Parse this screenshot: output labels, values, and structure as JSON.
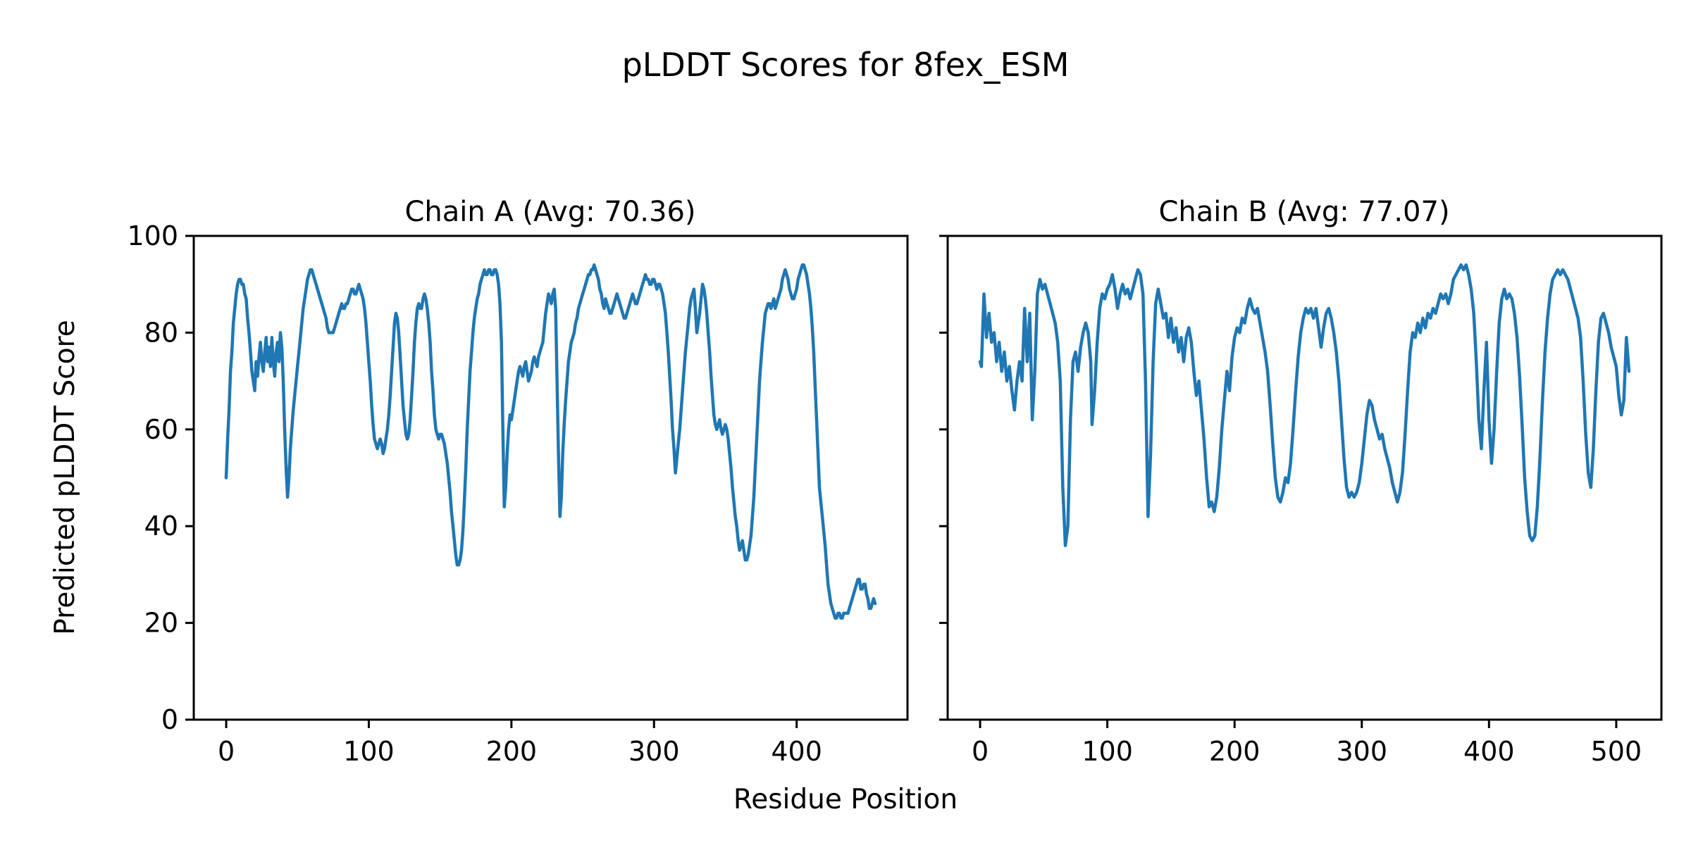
{
  "figure": {
    "title": "pLDDT Scores for 8fex_ESM",
    "xlabel": "Residue Position",
    "ylabel": "Predicted pLDDT Score",
    "background_color": "#ffffff",
    "text_color": "#000000",
    "spine_color": "#000000"
  },
  "chart_data": [
    {
      "type": "line",
      "title": "Chain A (Avg: 70.36)",
      "series_name": "Chain A pLDDT",
      "avg": 70.36,
      "line_color": "#1f77b4",
      "grid": false,
      "legend": false,
      "xlim": [
        -22.75,
        477.75
      ],
      "ylim": [
        0,
        100
      ],
      "xticks": [
        0,
        100,
        200,
        300,
        400
      ],
      "yticks": [
        0,
        20,
        40,
        60,
        80,
        100
      ],
      "show_ytick_labels": true,
      "x_start": 0,
      "x_step": 1,
      "y": [
        50,
        58,
        64,
        72,
        76,
        82,
        85,
        88,
        90,
        91,
        91,
        90,
        90,
        88,
        87,
        83,
        80,
        76,
        72,
        70,
        68,
        74,
        71,
        75,
        78,
        74,
        72,
        76,
        79,
        74,
        77,
        73,
        79,
        74,
        71,
        76,
        78,
        74,
        80,
        77,
        70,
        60,
        52,
        46,
        50,
        56,
        60,
        64,
        67,
        70,
        73,
        76,
        79,
        82,
        85,
        87,
        89,
        91,
        92,
        93,
        93,
        92,
        91,
        90,
        89,
        88,
        87,
        86,
        85,
        84,
        83,
        81,
        80,
        80,
        80,
        80,
        81,
        82,
        83,
        84,
        85,
        86,
        85,
        85,
        86,
        86,
        87,
        88,
        89,
        89,
        88,
        88,
        89,
        90,
        89,
        88,
        87,
        85,
        82,
        78,
        74,
        70,
        65,
        61,
        58,
        57,
        56,
        57,
        58,
        57,
        55,
        56,
        58,
        60,
        63,
        67,
        72,
        77,
        82,
        84,
        83,
        80,
        75,
        70,
        65,
        62,
        59,
        58,
        59,
        62,
        67,
        72,
        78,
        82,
        85,
        86,
        85,
        85,
        87,
        88,
        87,
        85,
        82,
        78,
        72,
        68,
        63,
        60,
        59,
        58,
        59,
        59,
        58,
        57,
        55,
        53,
        50,
        47,
        43,
        40,
        37,
        34,
        32,
        32,
        33,
        35,
        39,
        45,
        52,
        60,
        66,
        72,
        76,
        80,
        83,
        85,
        87,
        88,
        90,
        91,
        92,
        93,
        92,
        92,
        93,
        93,
        92,
        92,
        93,
        93,
        92,
        90,
        86,
        78,
        60,
        44,
        48,
        55,
        60,
        63,
        62,
        64,
        66,
        68,
        70,
        72,
        73,
        72,
        71,
        73,
        74,
        72,
        70,
        71,
        72,
        74,
        75,
        74,
        73,
        75,
        76,
        77,
        78,
        81,
        84,
        86,
        88,
        87,
        86,
        88,
        89,
        85,
        70,
        55,
        42,
        46,
        55,
        61,
        66,
        70,
        74,
        76,
        78,
        79,
        80,
        82,
        83,
        85,
        86,
        87,
        88,
        89,
        90,
        91,
        92,
        92,
        93,
        93,
        94,
        93,
        92,
        91,
        89,
        88,
        86,
        85,
        87,
        86,
        85,
        84,
        84,
        85,
        86,
        87,
        88,
        87,
        86,
        85,
        84,
        83,
        83,
        84,
        85,
        86,
        87,
        88,
        87,
        86,
        86,
        87,
        88,
        89,
        90,
        91,
        92,
        91,
        91,
        90,
        90,
        91,
        91,
        90,
        89,
        90,
        90,
        89,
        88,
        86,
        84,
        80,
        76,
        71,
        66,
        60,
        56,
        51,
        54,
        57,
        60,
        64,
        68,
        72,
        76,
        79,
        82,
        85,
        87,
        88,
        89,
        85,
        80,
        82,
        84,
        87,
        90,
        89,
        87,
        84,
        80,
        76,
        71,
        67,
        63,
        61,
        60,
        61,
        62,
        60,
        59,
        60,
        61,
        60,
        58,
        55,
        52,
        48,
        45,
        42,
        40,
        37,
        35,
        36,
        37,
        35,
        33,
        33,
        34,
        36,
        38,
        42,
        46,
        52,
        58,
        64,
        70,
        74,
        78,
        81,
        84,
        85,
        86,
        86,
        85,
        86,
        87,
        85,
        86,
        87,
        88,
        89,
        91,
        92,
        93,
        92,
        91,
        89,
        88,
        87,
        87,
        88,
        89,
        91,
        92,
        93,
        94,
        94,
        93,
        92,
        90,
        88,
        85,
        81,
        76,
        69,
        62,
        55,
        48,
        45,
        42,
        39,
        36,
        32,
        28,
        26,
        24,
        23,
        22,
        21,
        21,
        22,
        22,
        21,
        21,
        22,
        22,
        22,
        22,
        23,
        24,
        25,
        26,
        27,
        28,
        29,
        29,
        27,
        27,
        28,
        28,
        26,
        25,
        23,
        23,
        24,
        25,
        24
      ]
    },
    {
      "type": "line",
      "title": "Chain B (Avg: 77.07)",
      "series_name": "Chain B pLDDT",
      "avg": 77.07,
      "line_color": "#1f77b4",
      "grid": false,
      "legend": false,
      "xlim": [
        -25.5,
        535.5
      ],
      "ylim": [
        0,
        100
      ],
      "xticks": [
        0,
        100,
        200,
        300,
        400,
        500
      ],
      "yticks": [
        0,
        20,
        40,
        60,
        80,
        100
      ],
      "show_ytick_labels": false,
      "x": [
        0,
        1,
        3,
        5,
        7,
        9,
        11,
        13,
        15,
        17,
        19,
        21,
        23,
        25,
        27,
        29,
        31,
        33,
        35,
        37,
        39,
        41,
        43,
        45,
        47,
        49,
        51,
        53,
        55,
        57,
        59,
        61,
        63,
        65,
        67,
        69,
        71,
        73,
        75,
        77,
        79,
        81,
        83,
        85,
        87,
        88,
        90,
        92,
        94,
        96,
        98,
        100,
        102,
        104,
        106,
        108,
        110,
        112,
        114,
        116,
        118,
        120,
        122,
        124,
        126,
        128,
        130,
        132,
        134,
        136,
        138,
        140,
        142,
        144,
        146,
        148,
        150,
        152,
        154,
        156,
        158,
        160,
        162,
        164,
        166,
        168,
        170,
        172,
        174,
        176,
        178,
        180,
        182,
        184,
        186,
        188,
        190,
        192,
        194,
        196,
        198,
        200,
        202,
        204,
        206,
        208,
        210,
        212,
        214,
        216,
        218,
        220,
        222,
        224,
        226,
        228,
        230,
        232,
        234,
        236,
        238,
        240,
        242,
        244,
        246,
        248,
        250,
        252,
        254,
        256,
        258,
        260,
        262,
        264,
        266,
        268,
        270,
        272,
        274,
        276,
        278,
        280,
        282,
        284,
        286,
        288,
        290,
        292,
        294,
        296,
        298,
        300,
        302,
        304,
        306,
        308,
        310,
        312,
        314,
        316,
        318,
        320,
        322,
        324,
        326,
        328,
        330,
        332,
        334,
        336,
        338,
        340,
        342,
        344,
        346,
        348,
        350,
        352,
        354,
        356,
        358,
        360,
        362,
        364,
        366,
        368,
        370,
        372,
        374,
        376,
        378,
        380,
        382,
        384,
        386,
        388,
        390,
        392,
        394,
        396,
        398,
        400,
        402,
        404,
        406,
        408,
        410,
        412,
        414,
        416,
        418,
        420,
        422,
        424,
        426,
        428,
        430,
        432,
        434,
        436,
        438,
        440,
        442,
        444,
        446,
        448,
        450,
        452,
        454,
        456,
        458,
        460,
        462,
        464,
        466,
        468,
        470,
        472,
        474,
        476,
        478,
        480,
        482,
        484,
        486,
        488,
        490,
        492,
        494,
        496,
        498,
        500,
        502,
        504,
        506,
        508,
        510
      ],
      "y": [
        74,
        73,
        88,
        79,
        84,
        78,
        80,
        74,
        78,
        72,
        76,
        70,
        73,
        68,
        64,
        70,
        74,
        70,
        85,
        74,
        84,
        62,
        72,
        88,
        91,
        89,
        90,
        88,
        86,
        84,
        82,
        78,
        70,
        48,
        36,
        40,
        62,
        74,
        76,
        72,
        77,
        80,
        82,
        80,
        74,
        61,
        68,
        78,
        85,
        88,
        87,
        89,
        90,
        92,
        89,
        85,
        88,
        90,
        88,
        89,
        87,
        89,
        91,
        93,
        92,
        88,
        70,
        42,
        55,
        74,
        86,
        89,
        86,
        83,
        84,
        79,
        83,
        78,
        81,
        76,
        79,
        74,
        79,
        81,
        78,
        72,
        67,
        70,
        64,
        58,
        50,
        44,
        45,
        43,
        46,
        52,
        60,
        66,
        72,
        68,
        75,
        79,
        81,
        80,
        83,
        82,
        85,
        87,
        85,
        84,
        85,
        82,
        79,
        76,
        72,
        65,
        57,
        50,
        46,
        45,
        47,
        50,
        49,
        53,
        60,
        68,
        75,
        80,
        83,
        85,
        84,
        85,
        83,
        85,
        81,
        77,
        81,
        84,
        85,
        83,
        80,
        76,
        70,
        62,
        54,
        48,
        46,
        47,
        46,
        47,
        49,
        53,
        58,
        63,
        66,
        65,
        62,
        60,
        58,
        59,
        56,
        54,
        52,
        49,
        47,
        45,
        47,
        51,
        59,
        68,
        76,
        80,
        79,
        82,
        80,
        83,
        81,
        84,
        83,
        85,
        84,
        86,
        88,
        87,
        88,
        86,
        88,
        91,
        92,
        93,
        94,
        93,
        94,
        92,
        89,
        84,
        74,
        62,
        56,
        68,
        78,
        62,
        53,
        60,
        72,
        82,
        87,
        89,
        87,
        88,
        87,
        84,
        79,
        71,
        61,
        50,
        43,
        38,
        37,
        38,
        44,
        54,
        66,
        76,
        83,
        88,
        91,
        92,
        93,
        92,
        93,
        92,
        91,
        89,
        87,
        85,
        83,
        79,
        70,
        59,
        51,
        48,
        56,
        68,
        78,
        83,
        84,
        82,
        80,
        77,
        75,
        73,
        67,
        63,
        66,
        79,
        72
      ]
    }
  ]
}
